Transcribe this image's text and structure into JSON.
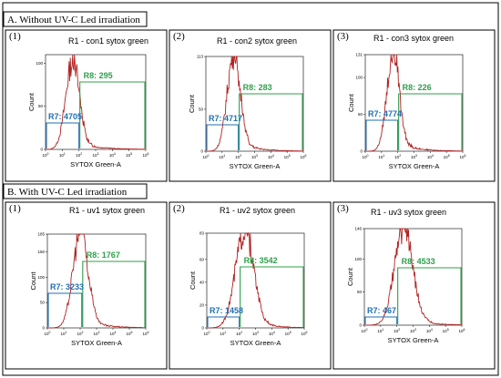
{
  "sections": [
    {
      "title": "A. Without UV-C Led irradiation"
    },
    {
      "title": "B. With UV-C Led irradiation"
    }
  ],
  "colors": {
    "histogram": "#b22222",
    "gate_r7": "#1f6fb2",
    "gate_r8": "#2ea04a",
    "frame": "#000000"
  },
  "chart_data": [
    {
      "type": "area",
      "panel": "(1)",
      "title": "R1 - con1 sytox green",
      "xlabel": "SYTOX Green-A",
      "ylabel": "Count",
      "xscale": "log",
      "xlim": [
        1,
        1000000
      ],
      "ylim": [
        0,
        110
      ],
      "yticks": [
        0,
        50,
        100
      ],
      "xtick_labels": [
        "10^0",
        "10^1",
        "10^2",
        "10^3",
        "10^4",
        "10^5",
        "10^6"
      ],
      "gates": [
        {
          "name": "R7",
          "count": 4705
        },
        {
          "name": "R8",
          "count": 295
        }
      ],
      "peak_x": 1.6,
      "peak_y": 100,
      "spread": 0.4,
      "gate_split": 2.0
    },
    {
      "type": "area",
      "panel": "(2)",
      "title": "R1 - con2 sytox green",
      "xlabel": "SYTOX Green-A",
      "ylabel": "Count",
      "xscale": "log",
      "xlim": [
        1,
        1000000
      ],
      "ylim": [
        0,
        113
      ],
      "yticks": [
        0,
        50,
        113
      ],
      "xtick_labels": [
        "10^0",
        "10^1",
        "10^2",
        "10^3",
        "10^4",
        "10^5",
        "10^6"
      ],
      "gates": [
        {
          "name": "R7",
          "count": 4717
        },
        {
          "name": "R8",
          "count": 283
        }
      ],
      "peak_x": 1.7,
      "peak_y": 113,
      "spread": 0.4,
      "gate_split": 2.0
    },
    {
      "type": "area",
      "panel": "(3)",
      "title": "R1 - con3 sytox green",
      "xlabel": "SYTOX Green-A",
      "ylabel": "Count",
      "xscale": "log",
      "xlim": [
        1,
        1000000
      ],
      "ylim": [
        0,
        131
      ],
      "yticks": [
        0,
        50,
        100,
        131
      ],
      "xtick_labels": [
        "10^0",
        "10^1",
        "10^2",
        "10^3",
        "10^4",
        "10^5",
        "10^6"
      ],
      "gates": [
        {
          "name": "R7",
          "count": 4774
        },
        {
          "name": "R8",
          "count": 226
        }
      ],
      "peak_x": 1.7,
      "peak_y": 131,
      "spread": 0.38,
      "gate_split": 2.0
    },
    {
      "type": "area",
      "panel": "(1)",
      "title": "R1 - uv1 sytox green",
      "xlabel": "SYTOX Green-A",
      "ylabel": "Count",
      "xscale": "log",
      "xlim": [
        1,
        1000000
      ],
      "ylim": [
        0,
        185
      ],
      "yticks": [
        0,
        50,
        100,
        150,
        185
      ],
      "xtick_labels": [
        "10^0",
        "10^1",
        "10^2",
        "10^3",
        "10^4",
        "10^5",
        "10^6"
      ],
      "gates": [
        {
          "name": "R7",
          "count": 3233
        },
        {
          "name": "R8",
          "count": 1767
        }
      ],
      "peak_x": 2.0,
      "peak_y": 185,
      "spread": 0.45,
      "gate_split": 2.1
    },
    {
      "type": "area",
      "panel": "(2)",
      "title": "R1 - uv2 sytox green",
      "xlabel": "SYTOX Green-A",
      "ylabel": "Count",
      "xscale": "log",
      "xlim": [
        1,
        1000000
      ],
      "ylim": [
        0,
        83
      ],
      "yticks": [
        0,
        20,
        40,
        60,
        83
      ],
      "xtick_labels": [
        "10^0",
        "10^1",
        "10^2",
        "10^3",
        "10^4",
        "10^5",
        "10^6"
      ],
      "gates": [
        {
          "name": "R7",
          "count": 1458
        },
        {
          "name": "R8",
          "count": 3542
        }
      ],
      "peak_x": 2.3,
      "peak_y": 83,
      "spread": 0.55,
      "gate_split": 2.0
    },
    {
      "type": "area",
      "panel": "(3)",
      "title": "R1 - uv3 sytox green",
      "xlabel": "SYTOX Green-A",
      "ylabel": "Count",
      "xscale": "log",
      "xlim": [
        1,
        1000000
      ],
      "ylim": [
        0,
        146
      ],
      "yticks": [
        0,
        50,
        100,
        146
      ],
      "xtick_labels": [
        "10^0",
        "10^1",
        "10^2",
        "10^3",
        "10^4",
        "10^5",
        "10^6"
      ],
      "gates": [
        {
          "name": "R7",
          "count": 467
        },
        {
          "name": "R8",
          "count": 4533
        }
      ],
      "peak_x": 2.4,
      "peak_y": 146,
      "spread": 0.55,
      "gate_split": 2.0
    }
  ]
}
